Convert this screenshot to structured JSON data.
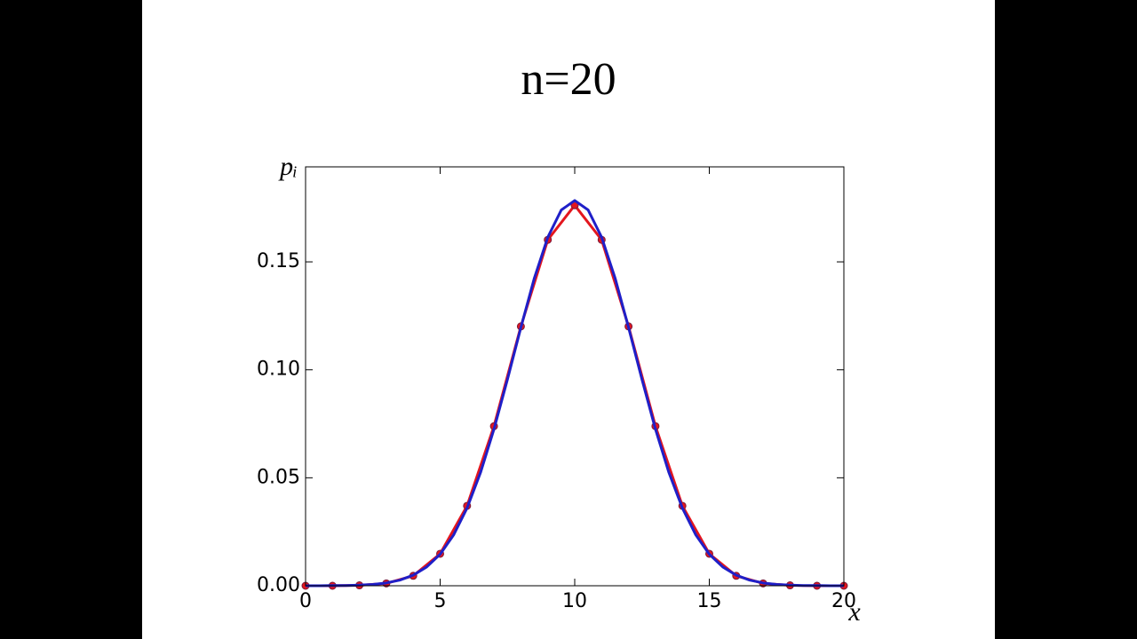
{
  "chart_data": {
    "type": "line",
    "title": "n=20",
    "xlabel": "x",
    "ylabel": "pᵢ",
    "xlim": [
      0,
      20
    ],
    "xticks": [
      0,
      5,
      10,
      15,
      20
    ],
    "ylim": [
      0,
      0.194
    ],
    "yticks": [
      {
        "value": 0,
        "label": "0.00"
      },
      0.05,
      {
        "value": 0.1,
        "label": "0.10"
      },
      0.15
    ],
    "grid": false,
    "series": [
      {
        "color": "#e3161e",
        "markers": true,
        "x": [
          0,
          1,
          2,
          3,
          4,
          5,
          6,
          7,
          8,
          9,
          10,
          11,
          12,
          13,
          14,
          15,
          16,
          17,
          18,
          19,
          20
        ],
        "values": [
          0.0,
          0.0,
          0.0002,
          0.0011,
          0.0046,
          0.0148,
          0.037,
          0.0739,
          0.1201,
          0.1602,
          0.1762,
          0.1602,
          0.1201,
          0.0739,
          0.037,
          0.0148,
          0.0046,
          0.0011,
          0.0002,
          0.0,
          0.0
        ]
      },
      {
        "color": "#1f1fc8",
        "markers": false,
        "x": [
          0,
          0.5,
          1,
          1.5,
          2,
          2.5,
          3,
          3.5,
          4,
          4.5,
          5,
          5.5,
          6,
          6.5,
          7,
          7.5,
          8,
          8.5,
          9,
          9.5,
          10,
          10.5,
          11,
          11.5,
          12,
          12.5,
          13,
          13.5,
          14,
          14.5,
          15,
          15.5,
          16,
          16.5,
          17,
          17.5,
          18,
          18.5,
          19,
          19.5,
          20
        ],
        "values": [
          0.0,
          0.0,
          0.0001,
          0.0001,
          0.0003,
          0.0006,
          0.0013,
          0.0026,
          0.0049,
          0.0087,
          0.0146,
          0.0235,
          0.036,
          0.0524,
          0.0725,
          0.0955,
          0.1196,
          0.1425,
          0.1614,
          0.174,
          0.1784,
          0.174,
          0.1614,
          0.1425,
          0.1196,
          0.0955,
          0.0725,
          0.0524,
          0.036,
          0.0235,
          0.0146,
          0.0087,
          0.0049,
          0.0026,
          0.0013,
          0.0006,
          0.0003,
          0.0001,
          0.0001,
          0.0,
          0.0
        ]
      }
    ]
  }
}
